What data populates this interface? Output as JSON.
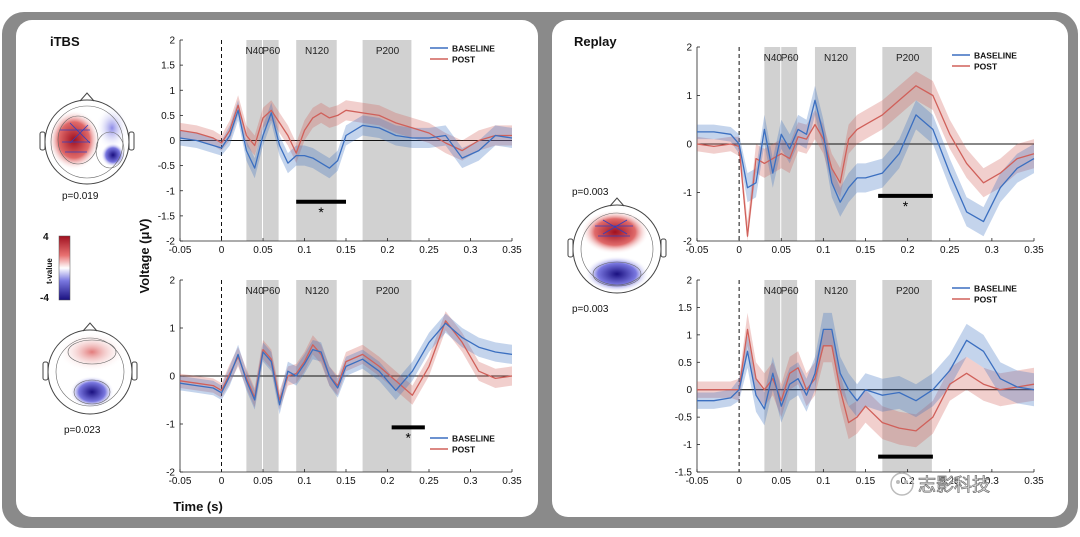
{
  "panels": {
    "itbs": {
      "title": "iTBS"
    },
    "replay": {
      "title": "Replay"
    }
  },
  "colorbar": {
    "max_label": "4",
    "min_label": "-4",
    "label": "t-value"
  },
  "topos": {
    "itbs_top": {
      "p_label": "p=0.019"
    },
    "itbs_bottom": {
      "p_label": "p=0.023"
    },
    "replay_top": {
      "p_label": "p=0.003"
    },
    "replay_bottom": {
      "p_label": "p=0.003"
    }
  },
  "shared_axes": {
    "ylabel": "Voltage (μV)",
    "xlabel": "Time (s)"
  },
  "watermark": {
    "text": "志影科技"
  },
  "colors": {
    "baseline": "#3b6fc0",
    "post": "#d0605a",
    "shade": "#c9c9c9"
  },
  "chart_data": [
    {
      "id": "itbs_top",
      "type": "line",
      "xlim": [
        -0.05,
        0.35
      ],
      "ylim": [
        -2,
        2
      ],
      "xticks": [
        "-0.05",
        "0",
        "0.05",
        "0.1",
        "0.15",
        "0.2",
        "0.25",
        "0.3",
        "0.35"
      ],
      "yticks": [
        "-2",
        "-1.5",
        "-1",
        "-0.5",
        "0",
        "0.5",
        "1",
        "1.5",
        "2"
      ],
      "components": [
        {
          "label": "N40",
          "x0": 0.03,
          "x1": 0.05
        },
        {
          "label": "P60",
          "x0": 0.05,
          "x1": 0.07
        },
        {
          "label": "N120",
          "x0": 0.09,
          "x1": 0.14
        },
        {
          "label": "P200",
          "x0": 0.17,
          "x1": 0.23
        }
      ],
      "sig_bar": {
        "x0": 0.09,
        "x1": 0.15,
        "y": -1.22,
        "star": "*"
      },
      "legend": {
        "position": "top-right",
        "entries": [
          "BASELINE",
          "POST"
        ]
      },
      "x": [
        -0.05,
        -0.03,
        -0.01,
        0,
        0.01,
        0.02,
        0.03,
        0.04,
        0.05,
        0.06,
        0.07,
        0.08,
        0.09,
        0.1,
        0.11,
        0.12,
        0.13,
        0.14,
        0.15,
        0.17,
        0.19,
        0.21,
        0.23,
        0.25,
        0.27,
        0.29,
        0.31,
        0.33,
        0.35
      ],
      "series": [
        {
          "name": "BASELINE",
          "values": [
            0.05,
            0.0,
            -0.1,
            -0.15,
            0.1,
            0.6,
            -0.2,
            -0.55,
            0.1,
            0.55,
            -0.1,
            -0.45,
            -0.3,
            -0.3,
            -0.35,
            -0.45,
            -0.55,
            -0.4,
            0.1,
            0.3,
            0.25,
            0.1,
            0.05,
            0.05,
            0.1,
            -0.35,
            -0.2,
            0.1,
            0.05
          ],
          "err": [
            0.15,
            0.15,
            0.15,
            0.15,
            0.2,
            0.2,
            0.2,
            0.2,
            0.2,
            0.2,
            0.2,
            0.2,
            0.2,
            0.2,
            0.2,
            0.2,
            0.2,
            0.2,
            0.2,
            0.2,
            0.2,
            0.2,
            0.2,
            0.2,
            0.2,
            0.2,
            0.2,
            0.2,
            0.2
          ]
        },
        {
          "name": "POST",
          "values": [
            0.2,
            0.15,
            0.05,
            -0.05,
            0.2,
            0.7,
            0.1,
            -0.1,
            0.45,
            0.6,
            0.35,
            0.1,
            -0.25,
            0.2,
            0.45,
            0.55,
            0.45,
            0.5,
            0.6,
            0.55,
            0.5,
            0.35,
            0.25,
            0.15,
            -0.05,
            -0.2,
            0.0,
            0.1,
            0.1
          ],
          "err": [
            0.15,
            0.15,
            0.15,
            0.15,
            0.2,
            0.2,
            0.2,
            0.2,
            0.2,
            0.2,
            0.2,
            0.2,
            0.2,
            0.2,
            0.2,
            0.2,
            0.2,
            0.2,
            0.2,
            0.2,
            0.2,
            0.2,
            0.2,
            0.2,
            0.2,
            0.2,
            0.2,
            0.2,
            0.2
          ]
        }
      ]
    },
    {
      "id": "itbs_bottom",
      "type": "line",
      "xlim": [
        -0.05,
        0.35
      ],
      "ylim": [
        -2,
        2
      ],
      "xticks": [
        "-0.05",
        "0",
        "0.05",
        "0.1",
        "0.15",
        "0.2",
        "0.25",
        "0.3",
        "0.35"
      ],
      "yticks": [
        "-2",
        "-1",
        "0",
        "1",
        "2"
      ],
      "components": [
        {
          "label": "N40",
          "x0": 0.03,
          "x1": 0.05
        },
        {
          "label": "P60",
          "x0": 0.05,
          "x1": 0.07
        },
        {
          "label": "N120",
          "x0": 0.09,
          "x1": 0.14
        },
        {
          "label": "P200",
          "x0": 0.17,
          "x1": 0.23
        }
      ],
      "sig_bar": {
        "x0": 0.205,
        "x1": 0.245,
        "y": -1.07,
        "star": "*"
      },
      "legend": {
        "position": "bottom-right",
        "entries": [
          "BASELINE",
          "POST"
        ]
      },
      "x": [
        -0.05,
        -0.03,
        -0.01,
        0,
        0.01,
        0.02,
        0.03,
        0.04,
        0.05,
        0.06,
        0.07,
        0.08,
        0.09,
        0.1,
        0.11,
        0.12,
        0.13,
        0.14,
        0.15,
        0.17,
        0.19,
        0.21,
        0.23,
        0.25,
        0.27,
        0.29,
        0.31,
        0.33,
        0.35
      ],
      "series": [
        {
          "name": "BASELINE",
          "values": [
            -0.15,
            -0.2,
            -0.25,
            -0.35,
            0.0,
            0.45,
            -0.1,
            -0.5,
            0.5,
            0.3,
            -0.6,
            0.1,
            0.0,
            0.25,
            0.55,
            0.5,
            0.0,
            -0.25,
            0.2,
            0.35,
            0.1,
            -0.3,
            0.1,
            0.7,
            1.1,
            0.8,
            0.6,
            0.5,
            0.45
          ],
          "err": [
            0.15,
            0.15,
            0.15,
            0.15,
            0.2,
            0.2,
            0.2,
            0.2,
            0.2,
            0.2,
            0.2,
            0.2,
            0.2,
            0.2,
            0.2,
            0.2,
            0.2,
            0.2,
            0.2,
            0.2,
            0.2,
            0.2,
            0.2,
            0.2,
            0.2,
            0.2,
            0.2,
            0.2,
            0.2
          ]
        },
        {
          "name": "POST",
          "values": [
            -0.1,
            -0.15,
            -0.2,
            -0.3,
            0.05,
            0.4,
            -0.05,
            -0.45,
            0.55,
            0.35,
            -0.5,
            0.0,
            0.05,
            0.3,
            0.65,
            0.45,
            0.0,
            -0.2,
            0.3,
            0.45,
            0.2,
            -0.1,
            -0.4,
            0.2,
            1.15,
            0.7,
            0.1,
            -0.05,
            0.0
          ],
          "err": [
            0.15,
            0.15,
            0.15,
            0.15,
            0.2,
            0.2,
            0.2,
            0.2,
            0.2,
            0.2,
            0.2,
            0.2,
            0.2,
            0.2,
            0.2,
            0.2,
            0.2,
            0.2,
            0.2,
            0.2,
            0.2,
            0.2,
            0.2,
            0.2,
            0.2,
            0.2,
            0.2,
            0.2,
            0.2
          ]
        }
      ]
    },
    {
      "id": "replay_top",
      "type": "line",
      "xlim": [
        -0.05,
        0.35
      ],
      "ylim": [
        -2,
        2
      ],
      "xticks": [
        "-0.05",
        "0",
        "0.05",
        "0.1",
        "0.15",
        "0.2",
        "0.25",
        "0.3",
        "0.35"
      ],
      "yticks": [
        "-2",
        "-1",
        "0",
        "1",
        "2"
      ],
      "components": [
        {
          "label": "N40",
          "x0": 0.03,
          "x1": 0.05
        },
        {
          "label": "P60",
          "x0": 0.05,
          "x1": 0.07
        },
        {
          "label": "N120",
          "x0": 0.09,
          "x1": 0.14
        },
        {
          "label": "P200",
          "x0": 0.17,
          "x1": 0.23
        }
      ],
      "sig_bar": {
        "x0": 0.165,
        "x1": 0.23,
        "y": -1.07,
        "star": "*"
      },
      "legend": {
        "position": "top-right",
        "entries": [
          "BASELINE",
          "POST"
        ]
      },
      "x": [
        -0.05,
        -0.03,
        -0.01,
        0,
        0.01,
        0.02,
        0.03,
        0.04,
        0.05,
        0.06,
        0.07,
        0.08,
        0.09,
        0.1,
        0.11,
        0.12,
        0.13,
        0.14,
        0.15,
        0.17,
        0.19,
        0.21,
        0.23,
        0.25,
        0.27,
        0.29,
        0.31,
        0.33,
        0.35
      ],
      "series": [
        {
          "name": "BASELINE",
          "values": [
            0.25,
            0.25,
            0.2,
            0.0,
            -0.9,
            -0.8,
            0.3,
            -0.6,
            0.2,
            -0.1,
            0.3,
            0.2,
            0.9,
            0.2,
            -0.8,
            -1.2,
            -0.9,
            -0.7,
            -0.7,
            -0.6,
            -0.2,
            0.6,
            0.3,
            -0.6,
            -1.4,
            -1.6,
            -0.9,
            -0.5,
            -0.3
          ],
          "err": [
            0.15,
            0.15,
            0.15,
            0.2,
            0.3,
            0.3,
            0.3,
            0.3,
            0.3,
            0.3,
            0.3,
            0.3,
            0.3,
            0.3,
            0.3,
            0.3,
            0.3,
            0.3,
            0.3,
            0.3,
            0.3,
            0.3,
            0.3,
            0.3,
            0.3,
            0.3,
            0.3,
            0.3,
            0.3
          ]
        },
        {
          "name": "POST",
          "values": [
            0.0,
            -0.05,
            0.0,
            -0.05,
            -1.9,
            -0.3,
            -0.4,
            -0.3,
            -0.2,
            -0.3,
            0.15,
            0.1,
            0.4,
            0.1,
            -0.5,
            -0.8,
            0.1,
            0.3,
            0.4,
            0.6,
            0.9,
            1.2,
            1.0,
            0.2,
            -0.4,
            -0.8,
            -0.6,
            -0.3,
            -0.2
          ],
          "err": [
            0.15,
            0.15,
            0.15,
            0.2,
            0.3,
            0.3,
            0.3,
            0.3,
            0.3,
            0.3,
            0.3,
            0.3,
            0.3,
            0.3,
            0.3,
            0.3,
            0.3,
            0.3,
            0.3,
            0.3,
            0.3,
            0.3,
            0.3,
            0.3,
            0.3,
            0.3,
            0.3,
            0.3,
            0.3
          ]
        }
      ]
    },
    {
      "id": "replay_bottom",
      "type": "line",
      "xlim": [
        -0.05,
        0.35
      ],
      "ylim": [
        -1.5,
        2
      ],
      "xticks": [
        "-0.05",
        "0",
        "0.05",
        "0.1",
        "0.15",
        "0.2",
        "0.25",
        "0.3",
        "0.35"
      ],
      "yticks": [
        "-1.5",
        "-1",
        "-0.5",
        "0",
        "0.5",
        "1",
        "1.5",
        "2"
      ],
      "components": [
        {
          "label": "N40",
          "x0": 0.03,
          "x1": 0.05
        },
        {
          "label": "P60",
          "x0": 0.05,
          "x1": 0.07
        },
        {
          "label": "N120",
          "x0": 0.09,
          "x1": 0.14
        },
        {
          "label": "P200",
          "x0": 0.17,
          "x1": 0.23
        }
      ],
      "sig_bar": {
        "x0": 0.165,
        "x1": 0.23,
        "y": -1.22,
        "star": ""
      },
      "legend": {
        "position": "top-right",
        "entries": [
          "BASELINE",
          "POST"
        ]
      },
      "x": [
        -0.05,
        -0.03,
        -0.01,
        0,
        0.01,
        0.02,
        0.03,
        0.04,
        0.05,
        0.06,
        0.07,
        0.08,
        0.09,
        0.1,
        0.11,
        0.12,
        0.13,
        0.14,
        0.15,
        0.17,
        0.19,
        0.21,
        0.23,
        0.25,
        0.27,
        0.29,
        0.31,
        0.33,
        0.35
      ],
      "series": [
        {
          "name": "BASELINE",
          "values": [
            -0.2,
            -0.2,
            -0.15,
            0.0,
            0.7,
            -0.1,
            -0.35,
            0.3,
            -0.3,
            0.1,
            0.2,
            -0.1,
            0.3,
            1.1,
            1.1,
            0.3,
            0.0,
            -0.2,
            0.0,
            -0.1,
            -0.05,
            -0.2,
            0.0,
            0.35,
            0.9,
            0.7,
            0.2,
            0.05,
            0.0
          ],
          "err": [
            0.15,
            0.15,
            0.15,
            0.2,
            0.3,
            0.3,
            0.3,
            0.3,
            0.3,
            0.3,
            0.3,
            0.3,
            0.3,
            0.3,
            0.3,
            0.3,
            0.3,
            0.3,
            0.3,
            0.3,
            0.3,
            0.3,
            0.3,
            0.3,
            0.3,
            0.3,
            0.3,
            0.3,
            0.3
          ]
        },
        {
          "name": "POST",
          "values": [
            0.0,
            0.0,
            0.0,
            0.0,
            1.1,
            0.2,
            0.0,
            0.2,
            -0.2,
            0.3,
            0.4,
            0.0,
            0.2,
            0.8,
            0.8,
            0.0,
            -0.6,
            -0.5,
            -0.3,
            -0.6,
            -0.7,
            -0.75,
            -0.5,
            0.1,
            0.3,
            0.1,
            0.0,
            0.05,
            0.1
          ],
          "err": [
            0.15,
            0.15,
            0.15,
            0.2,
            0.3,
            0.3,
            0.3,
            0.3,
            0.3,
            0.3,
            0.3,
            0.3,
            0.3,
            0.3,
            0.3,
            0.3,
            0.3,
            0.3,
            0.3,
            0.3,
            0.3,
            0.3,
            0.3,
            0.3,
            0.3,
            0.3,
            0.3,
            0.3,
            0.3
          ]
        }
      ]
    }
  ]
}
